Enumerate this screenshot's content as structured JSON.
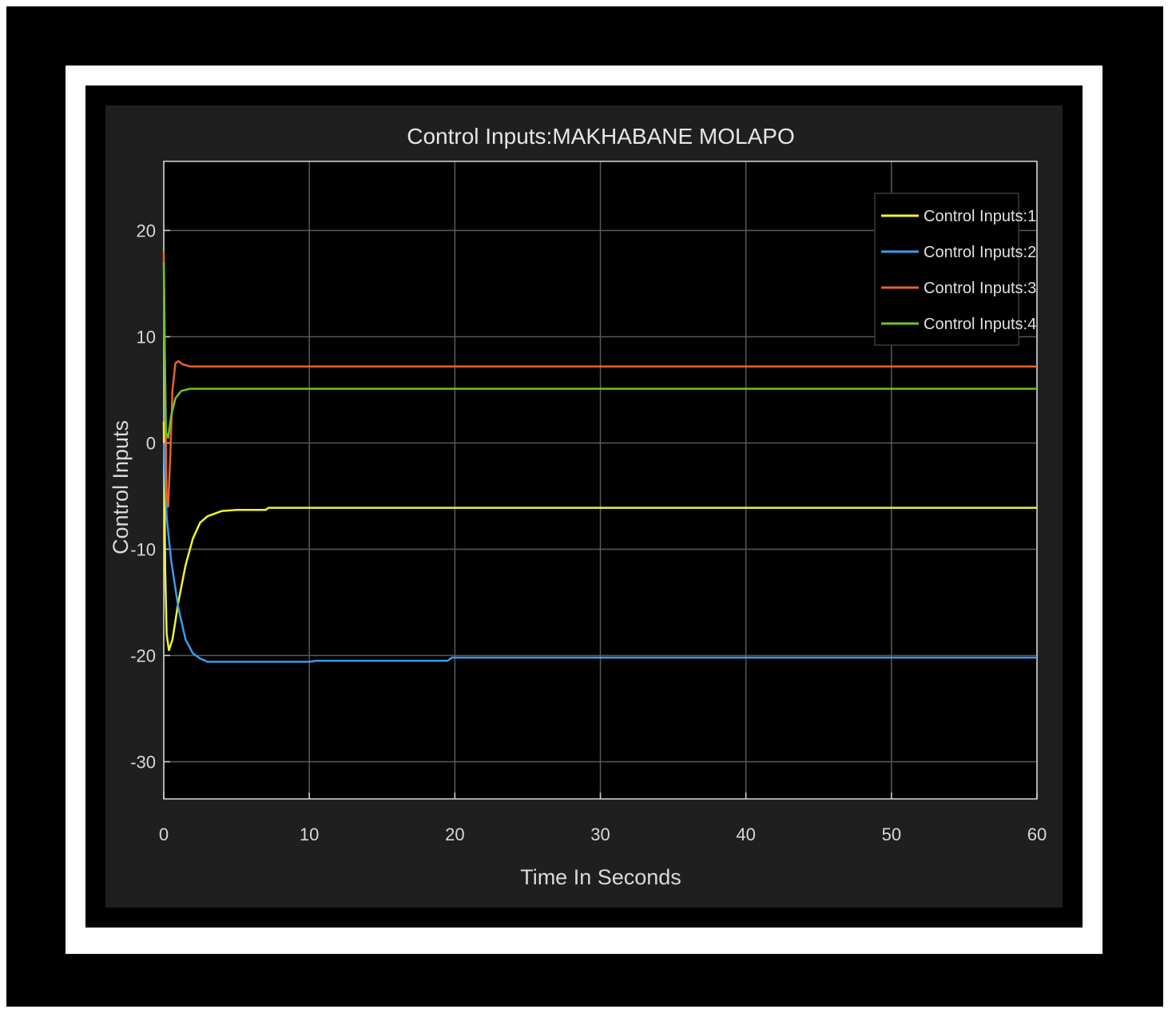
{
  "chart_data": {
    "type": "line",
    "title": "Control Inputs:MAKHABANE MOLAPO",
    "xlabel": "Time In Seconds",
    "ylabel": "Control Inputs",
    "xlim": [
      0,
      60
    ],
    "ylim": [
      -33.5,
      26.5
    ],
    "xticks": [
      0,
      10,
      20,
      30,
      40,
      50,
      60
    ],
    "yticks": [
      -30,
      -20,
      -10,
      0,
      10,
      20
    ],
    "grid": true,
    "legend_position": "top-right",
    "background": "#000000",
    "series": [
      {
        "name": "Control Inputs:1",
        "color": "#f2f230",
        "points": [
          [
            0,
            2
          ],
          [
            0.1,
            -12
          ],
          [
            0.2,
            -18
          ],
          [
            0.35,
            -19.5
          ],
          [
            0.6,
            -18.5
          ],
          [
            1,
            -15
          ],
          [
            1.5,
            -11.5
          ],
          [
            2,
            -9
          ],
          [
            2.5,
            -7.5
          ],
          [
            3,
            -6.9
          ],
          [
            4,
            -6.4
          ],
          [
            5,
            -6.3
          ],
          [
            7,
            -6.3
          ],
          [
            7.2,
            -6.1
          ],
          [
            60,
            -6.1
          ]
        ]
      },
      {
        "name": "Control Inputs:2",
        "color": "#3d9be9",
        "points": [
          [
            0,
            0
          ],
          [
            0.2,
            -7
          ],
          [
            0.5,
            -11
          ],
          [
            1,
            -15.5
          ],
          [
            1.5,
            -18.5
          ],
          [
            2,
            -19.8
          ],
          [
            2.5,
            -20.3
          ],
          [
            3,
            -20.6
          ],
          [
            5,
            -20.6
          ],
          [
            10,
            -20.6
          ],
          [
            10.5,
            -20.5
          ],
          [
            19.5,
            -20.5
          ],
          [
            19.8,
            -20.2
          ],
          [
            60,
            -20.2
          ]
        ]
      },
      {
        "name": "Control Inputs:3",
        "color": "#e8622c",
        "points": [
          [
            0,
            18
          ],
          [
            0.1,
            5
          ],
          [
            0.2,
            -5
          ],
          [
            0.3,
            -6
          ],
          [
            0.45,
            -1
          ],
          [
            0.6,
            5
          ],
          [
            0.8,
            7.5
          ],
          [
            1,
            7.7
          ],
          [
            1.3,
            7.4
          ],
          [
            1.8,
            7.2
          ],
          [
            60,
            7.2
          ]
        ]
      },
      {
        "name": "Control Inputs:4",
        "color": "#6cc32a",
        "points": [
          [
            0,
            17
          ],
          [
            0.05,
            11
          ],
          [
            0.15,
            1
          ],
          [
            0.3,
            0.5
          ],
          [
            0.5,
            2.5
          ],
          [
            0.8,
            4.2
          ],
          [
            1.2,
            4.9
          ],
          [
            1.8,
            5.1
          ],
          [
            60,
            5.1
          ]
        ]
      }
    ]
  }
}
